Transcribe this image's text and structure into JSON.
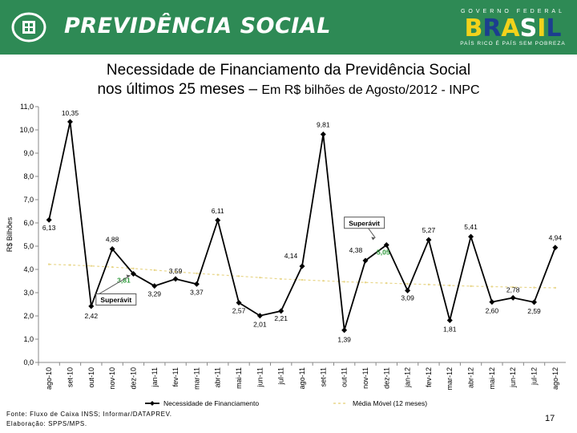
{
  "header": {
    "brand": "PREVIDÊNCIA SOCIAL",
    "gov_line": "GOVERNO FEDERAL",
    "country": "BRASIL",
    "slogan": "PAÍS RICO É PAÍS SEM POBREZA",
    "colors": {
      "bar": "#2e8a55",
      "yellow": "#f2d21b",
      "blue": "#1c3e8f"
    }
  },
  "title": {
    "line1": "Necessidade de Financiamento da Previdência Social",
    "line2_main": "nos últimos 25 meses –",
    "line2_sub": "Em R$ bilhões de Agosto/2012 - INPC"
  },
  "chart_data": {
    "type": "line",
    "ylabel": "R$ Bilhões",
    "ylim": [
      0,
      11
    ],
    "yticks": [
      "0,0",
      "1,0",
      "2,0",
      "3,0",
      "4,0",
      "5,0",
      "6,0",
      "7,0",
      "8,0",
      "9,0",
      "10,0",
      "11,0"
    ],
    "categories": [
      "ago-10",
      "set-10",
      "out-10",
      "nov-10",
      "dez-10",
      "jan-11",
      "fev-11",
      "mar-11",
      "abr-11",
      "mai-11",
      "jun-11",
      "jul-11",
      "ago-11",
      "set-11",
      "out-11",
      "nov-11",
      "dez-11",
      "jan-12",
      "fev-12",
      "mar-12",
      "abr-12",
      "mai-12",
      "jun-12",
      "jul-12",
      "ago-12"
    ],
    "series": [
      {
        "name": "Necessidade de Financiamento",
        "color": "#000000",
        "values": [
          6.13,
          10.35,
          2.42,
          4.88,
          3.81,
          3.29,
          3.59,
          3.37,
          6.11,
          2.57,
          2.01,
          2.21,
          4.14,
          9.81,
          1.39,
          4.38,
          5.05,
          3.09,
          5.27,
          1.81,
          5.41,
          2.6,
          2.78,
          2.59,
          4.94
        ],
        "labels": [
          "6,13",
          "10,35",
          "2,42",
          "4,88",
          "3,81",
          "3,29",
          "3,59",
          "3,37",
          "6,11",
          "2,57",
          "2,01",
          "2,21",
          "4,14",
          "9,81",
          "1,39",
          "4,38",
          "5,05",
          "3,09",
          "5,27",
          "1,81",
          "5,41",
          "2,60",
          "2,78",
          "2,59",
          "4,94"
        ]
      },
      {
        "name": "Média Móvel (12 meses)",
        "color": "#e8d68a",
        "values": [
          4.22,
          4.19,
          4.15,
          4.1,
          4.04,
          3.97,
          3.9,
          3.83,
          3.77,
          3.71,
          3.65,
          3.59,
          3.55,
          3.51,
          3.47,
          3.44,
          3.41,
          3.38,
          3.35,
          3.31,
          3.28,
          3.26,
          3.24,
          3.22,
          3.21
        ]
      }
    ],
    "annotations": [
      {
        "text": "Superávit",
        "point": "dez-10",
        "value_label": "3,81",
        "color": "#2e9a3a"
      },
      {
        "text": "Superávit",
        "point": "dez-11",
        "value_label": "5,05",
        "color": "#2e9a3a"
      }
    ],
    "legend_position": "bottom"
  },
  "footer": {
    "source": "Fonte: Fluxo de Caixa INSS; Informar/DATAPREV.",
    "prepared": "Elaboração: SPPS/MPS.",
    "page": "17"
  }
}
